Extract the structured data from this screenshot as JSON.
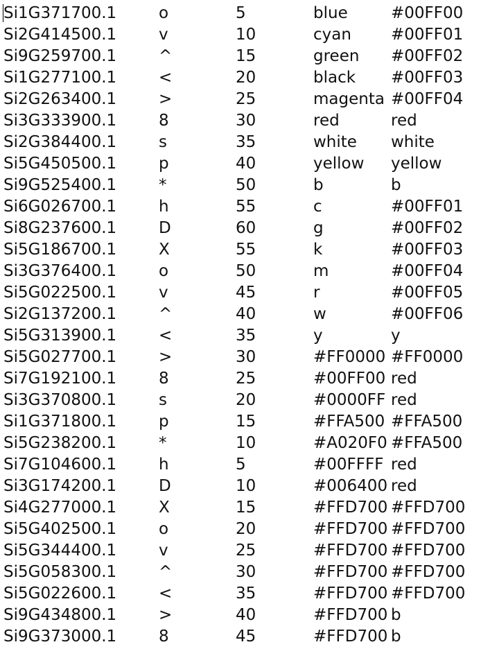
{
  "document": {
    "rows": [
      [
        "Si1G371700.1",
        "o",
        "5",
        "blue",
        "#00FF00"
      ],
      [
        "Si2G414500.1",
        "v",
        "10",
        "cyan",
        "#00FF01"
      ],
      [
        "Si9G259700.1",
        "^",
        "15",
        "green",
        "#00FF02"
      ],
      [
        "Si1G277100.1",
        "<",
        "20",
        "black",
        "#00FF03"
      ],
      [
        "Si2G263400.1",
        ">",
        "25",
        "magenta",
        "#00FF04"
      ],
      [
        "Si3G333900.1",
        "8",
        "30",
        "red",
        "red"
      ],
      [
        "Si2G384400.1",
        "s",
        "35",
        "white",
        "white"
      ],
      [
        "Si5G450500.1",
        "p",
        "40",
        "yellow",
        "yellow"
      ],
      [
        "Si9G525400.1",
        "*",
        "50",
        "b",
        "b"
      ],
      [
        "Si6G026700.1",
        "h",
        "55",
        "c",
        "#00FF01"
      ],
      [
        "Si8G237600.1",
        "D",
        "60",
        "g",
        "#00FF02"
      ],
      [
        "Si5G186700.1",
        "X",
        "55",
        "k",
        "#00FF03"
      ],
      [
        "Si3G376400.1",
        "o",
        "50",
        "m",
        "#00FF04"
      ],
      [
        "Si5G022500.1",
        "v",
        "45",
        "r",
        "#00FF05"
      ],
      [
        "Si2G137200.1",
        "^",
        "40",
        "w",
        "#00FF06"
      ],
      [
        "Si5G313900.1",
        "<",
        "35",
        "y",
        "y"
      ],
      [
        "Si5G027700.1",
        ">",
        "30",
        "#FF0000",
        "#FF0000"
      ],
      [
        "Si7G192100.1",
        "8",
        "25",
        "#00FF00",
        "red"
      ],
      [
        "Si3G370800.1",
        "s",
        "20",
        "#0000FF",
        "red"
      ],
      [
        "Si1G371800.1",
        "p",
        "15",
        "#FFA500",
        "#FFA500"
      ],
      [
        "Si5G238200.1",
        "*",
        "10",
        "#A020F0",
        "#FFA500"
      ],
      [
        "Si7G104600.1",
        "h",
        "5",
        "#00FFFF",
        "red"
      ],
      [
        "Si3G174200.1",
        "D",
        "10",
        "#006400",
        "red"
      ],
      [
        "Si4G277000.1",
        "X",
        "15",
        "#FFD700",
        "#FFD700"
      ],
      [
        "Si5G402500.1",
        "o",
        "20",
        "#FFD700",
        "#FFD700"
      ],
      [
        "Si5G344400.1",
        "v",
        "25",
        "#FFD700",
        "#FFD700"
      ],
      [
        "Si5G058300.1",
        "^",
        "30",
        "#FFD700",
        "#FFD700"
      ],
      [
        "Si5G022600.1",
        "<",
        "35",
        "#FFD700",
        "#FFD700"
      ],
      [
        "Si9G434800.1",
        ">",
        "40",
        "#FFD700",
        "b"
      ],
      [
        "Si9G373000.1",
        "8",
        "45",
        "#FFD700",
        "b"
      ]
    ]
  }
}
